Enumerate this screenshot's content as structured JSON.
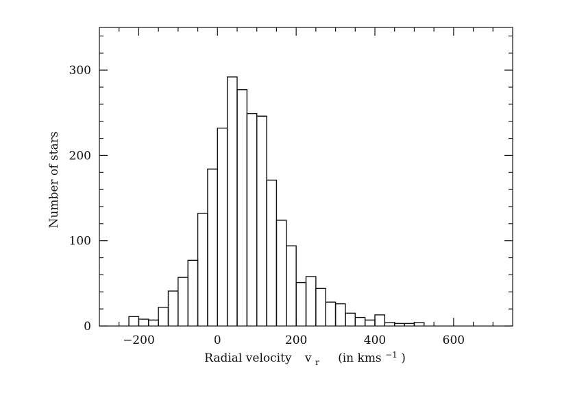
{
  "chart_data": {
    "type": "histogram",
    "xlabel": "Radial velocity",
    "xlabel_symbol": "v",
    "xlabel_subscript": "r",
    "xlabel_unit": "(in kms",
    "xlabel_unit_exponent": "−1",
    "xlabel_unit_close": ")",
    "ylabel": "Number of stars",
    "bins": [
      -225,
      -200,
      -175,
      -150,
      -125,
      -100,
      -75,
      -50,
      -25,
      0,
      25,
      50,
      75,
      100,
      125,
      150,
      175,
      200,
      225,
      250,
      275,
      300,
      325,
      350,
      375,
      400,
      425,
      450,
      475,
      500,
      525
    ],
    "values": [
      11,
      8,
      7,
      22,
      41,
      57,
      77,
      132,
      184,
      232,
      292,
      277,
      249,
      246,
      171,
      124,
      94,
      51,
      58,
      44,
      28,
      26,
      15,
      10,
      7,
      13,
      4,
      3,
      3,
      4
    ],
    "color": "#111111",
    "xlim": [
      -300,
      750
    ],
    "ylim": [
      0,
      350
    ],
    "xticks": [
      {
        "value": -200,
        "label": "−200"
      },
      0,
      200,
      400,
      600
    ],
    "yticks": [
      0,
      100,
      200,
      300
    ],
    "xminor_ticks": [
      -250,
      -150,
      -100,
      -50,
      50,
      100,
      150,
      250,
      300,
      350,
      450,
      500,
      550,
      650,
      700
    ],
    "yminor_ticks": [
      20,
      40,
      60,
      80,
      120,
      140,
      160,
      180,
      220,
      240,
      260,
      280,
      320,
      340
    ]
  }
}
